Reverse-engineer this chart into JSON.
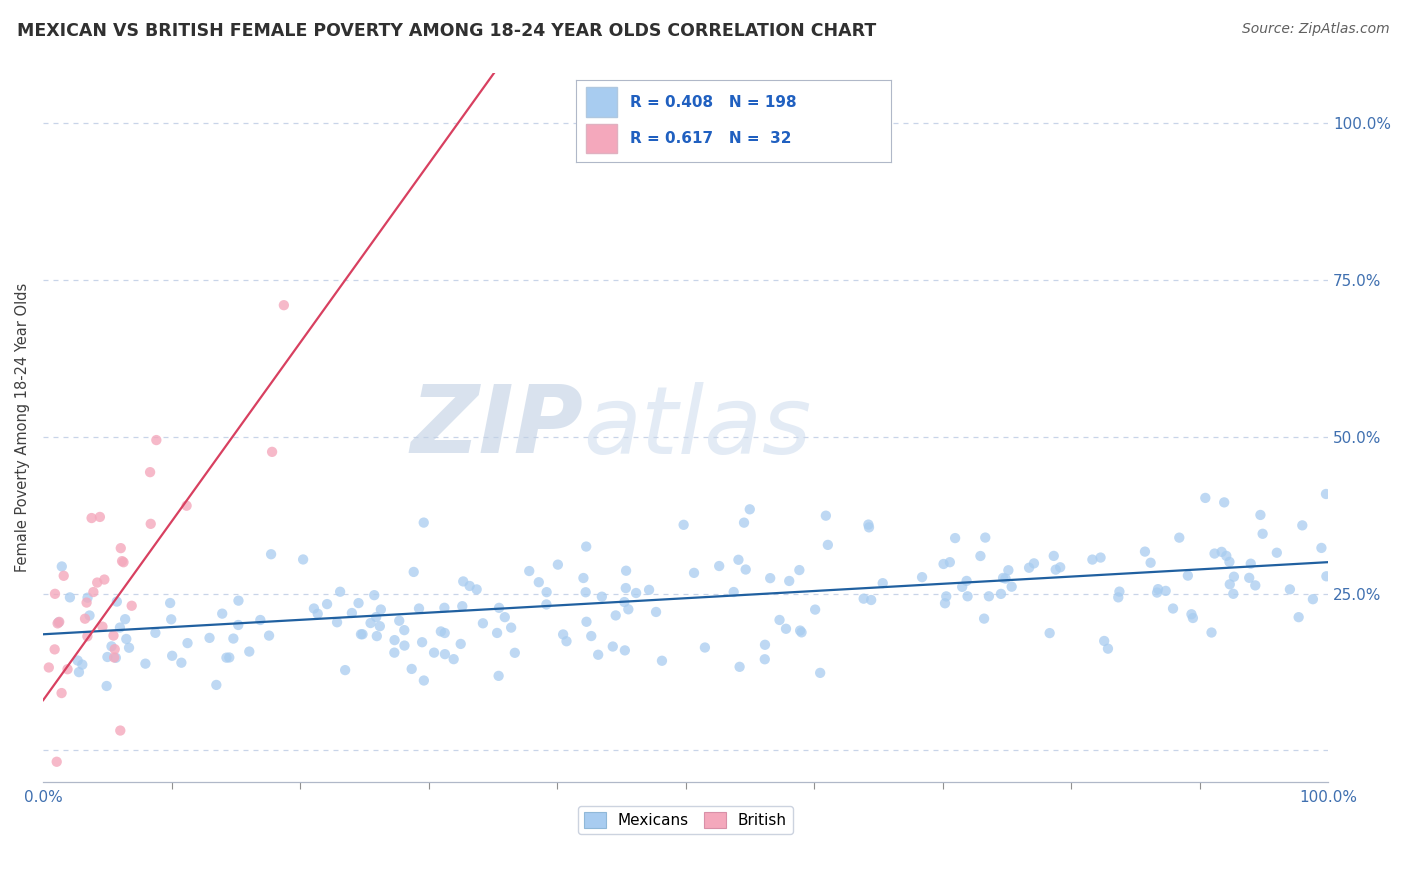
{
  "title": "MEXICAN VS BRITISH FEMALE POVERTY AMONG 18-24 YEAR OLDS CORRELATION CHART",
  "source": "Source: ZipAtlas.com",
  "ylabel": "Female Poverty Among 18-24 Year Olds",
  "watermark_zip": "ZIP",
  "watermark_atlas": "atlas",
  "xlim": [
    0.0,
    1.0
  ],
  "ylim": [
    -0.05,
    1.08
  ],
  "yticks": [
    0.0,
    0.25,
    0.5,
    0.75,
    1.0
  ],
  "ytick_labels": [
    "",
    "25.0%",
    "50.0%",
    "75.0%",
    "100.0%"
  ],
  "blue_color": "#A8CCF0",
  "pink_color": "#F4A8BC",
  "blue_line_color": "#2060A0",
  "pink_line_color": "#D84060",
  "R_blue": 0.408,
  "N_blue": 198,
  "R_pink": 0.617,
  "N_pink": 32,
  "legend_text_color": "#2060C0",
  "legend_label_color": "#404040",
  "title_color": "#303030",
  "axis_color": "#4070B0",
  "grid_color": "#C8D4E8",
  "background_color": "#FFFFFF",
  "seed": 77,
  "n_blue": 198,
  "n_pink": 32,
  "blue_slope": 0.115,
  "blue_intercept": 0.185,
  "pink_slope": 2.85,
  "pink_intercept": 0.08
}
